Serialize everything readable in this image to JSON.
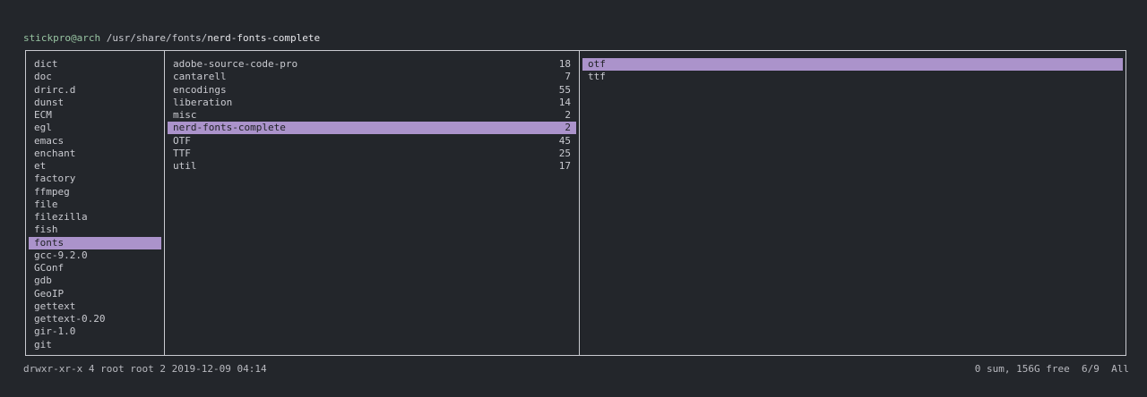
{
  "header": {
    "user": "stickpro@arch",
    "path": "/usr/share/fonts/",
    "current": "nerd-fonts-complete"
  },
  "columns": [
    {
      "items": [
        {
          "name": "dict"
        },
        {
          "name": "doc"
        },
        {
          "name": "drirc.d"
        },
        {
          "name": "dunst"
        },
        {
          "name": "ECM"
        },
        {
          "name": "egl"
        },
        {
          "name": "emacs"
        },
        {
          "name": "enchant"
        },
        {
          "name": "et"
        },
        {
          "name": "factory"
        },
        {
          "name": "ffmpeg"
        },
        {
          "name": "file"
        },
        {
          "name": "filezilla"
        },
        {
          "name": "fish"
        },
        {
          "name": "fonts",
          "selected": true
        },
        {
          "name": "gcc-9.2.0"
        },
        {
          "name": "GConf"
        },
        {
          "name": "gdb"
        },
        {
          "name": "GeoIP"
        },
        {
          "name": "gettext"
        },
        {
          "name": "gettext-0.20"
        },
        {
          "name": "gir-1.0"
        },
        {
          "name": "git"
        }
      ]
    },
    {
      "items": [
        {
          "name": "adobe-source-code-pro",
          "count": 18
        },
        {
          "name": "cantarell",
          "count": 7
        },
        {
          "name": "encodings",
          "count": 55
        },
        {
          "name": "liberation",
          "count": 14
        },
        {
          "name": "misc",
          "count": 2
        },
        {
          "name": "nerd-fonts-complete",
          "count": 2,
          "selected": true
        },
        {
          "name": "OTF",
          "count": 45
        },
        {
          "name": "TTF",
          "count": 25
        },
        {
          "name": "util",
          "count": 17
        }
      ]
    },
    {
      "items": [
        {
          "name": "otf",
          "selected": true
        },
        {
          "name": "ttf"
        }
      ]
    }
  ],
  "footer": {
    "permissions": "drwxr-xr-x",
    "links": "4",
    "owner": "root",
    "group": "root",
    "size": "2",
    "modified": "2019-12-09 04:14",
    "disk": "0 sum, 156G free",
    "position": "6/9",
    "scroll": "All"
  }
}
